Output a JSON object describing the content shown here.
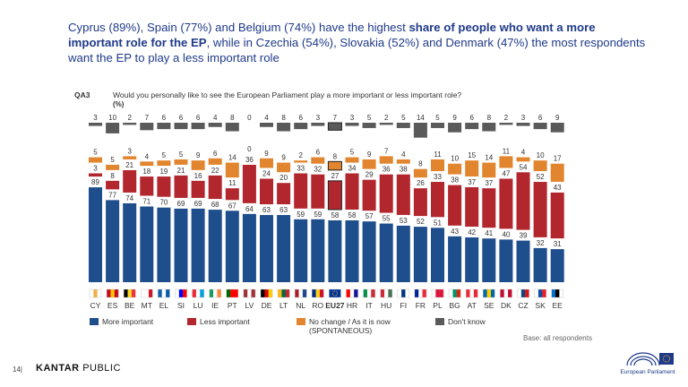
{
  "headline": {
    "part1": "Cyprus (89%), Spain (77%) and Belgium (74%) have the highest ",
    "bold": "share of people who want a more important role for the EP",
    "part2": ", while in Czechia (54%), Slovakia (52%) and Denmark (47%) the most respondents want the EP to play a less important role"
  },
  "question": {
    "code": "QA3",
    "text": "Would you personally like to see the European Parliament play a more important or less important role?",
    "unit": "(%)"
  },
  "legend": {
    "more": "More important",
    "less": "Less important",
    "nochange": "No change / As it is now",
    "nochange_sub": "(SPONTANEOUS)",
    "dk": "Don't know"
  },
  "base_note": "Base: all respondents",
  "page_number": "14",
  "brand": {
    "bold": "KANTAR",
    "light": "PUBLIC"
  },
  "ep_label": "European Parliament",
  "colors": {
    "more": "#1f4e8c",
    "less": "#b2262d",
    "nochange": "#e2852f",
    "dk": "#5a5a5a",
    "headline": "#1f3a8a"
  },
  "chart_data": {
    "type": "bar",
    "stacked": true,
    "highlighted_category": "EU27",
    "categories": [
      "CY",
      "ES",
      "BE",
      "MT",
      "EL",
      "SI",
      "LU",
      "IE",
      "PT",
      "LV",
      "DE",
      "LT",
      "NL",
      "RO",
      "EU27",
      "HR",
      "IT",
      "HU",
      "FI",
      "FR",
      "PL",
      "BG",
      "AT",
      "SE",
      "DK",
      "CZ",
      "SK",
      "EE"
    ],
    "series": [
      {
        "name": "More important",
        "values": [
          89,
          77,
          74,
          71,
          70,
          69,
          69,
          68,
          67,
          64,
          63,
          63,
          59,
          59,
          58,
          58,
          57,
          55,
          53,
          52,
          51,
          43,
          42,
          41,
          40,
          39,
          32,
          31
        ]
      },
      {
        "name": "Less important",
        "values": [
          3,
          8,
          21,
          18,
          19,
          21,
          16,
          22,
          11,
          36,
          24,
          20,
          33,
          32,
          27,
          34,
          29,
          36,
          38,
          26,
          33,
          38,
          37,
          37,
          47,
          54,
          52,
          43
        ]
      },
      {
        "name": "No change / As it is now (SPONTANEOUS)",
        "values": [
          5,
          5,
          3,
          4,
          5,
          5,
          9,
          6,
          14,
          0,
          9,
          9,
          2,
          6,
          8,
          5,
          9,
          7,
          4,
          8,
          11,
          10,
          15,
          14,
          11,
          4,
          10,
          17
        ]
      },
      {
        "name": "Don't know",
        "values": [
          3,
          10,
          2,
          7,
          6,
          6,
          6,
          4,
          8,
          0,
          4,
          8,
          6,
          3,
          7,
          3,
          5,
          2,
          5,
          14,
          5,
          9,
          6,
          8,
          2,
          3,
          6,
          9
        ]
      }
    ],
    "flag_colors": [
      [
        "#ffffff",
        "#f0b04a",
        "#ffffff"
      ],
      [
        "#c60b1e",
        "#ffc400",
        "#c60b1e"
      ],
      [
        "#000000",
        "#fdda24",
        "#ef3340"
      ],
      [
        "#ffffff",
        "#ffffff",
        "#cf142b"
      ],
      [
        "#0d5eaf",
        "#ffffff",
        "#0d5eaf"
      ],
      [
        "#ffffff",
        "#0000ff",
        "#ff0000"
      ],
      [
        "#ed2939",
        "#ffffff",
        "#00a1de"
      ],
      [
        "#169b62",
        "#ffffff",
        "#ff883e"
      ],
      [
        "#006600",
        "#ff0000",
        "#ff0000"
      ],
      [
        "#9e3039",
        "#ffffff",
        "#9e3039"
      ],
      [
        "#000000",
        "#dd0000",
        "#ffce00"
      ],
      [
        "#fdb913",
        "#006a44",
        "#c1272d"
      ],
      [
        "#ae1c28",
        "#ffffff",
        "#21468b"
      ],
      [
        "#002b7f",
        "#fcd116",
        "#ce1126"
      ],
      [
        "#003399",
        "#003399",
        "#003399"
      ],
      [
        "#ff0000",
        "#ffffff",
        "#171796"
      ],
      [
        "#009246",
        "#ffffff",
        "#ce2b37"
      ],
      [
        "#ce2939",
        "#ffffff",
        "#477050"
      ],
      [
        "#ffffff",
        "#003580",
        "#ffffff"
      ],
      [
        "#002395",
        "#ffffff",
        "#ed2939"
      ],
      [
        "#ffffff",
        "#dc143c",
        "#dc143c"
      ],
      [
        "#ffffff",
        "#00966e",
        "#d62612"
      ],
      [
        "#ed2939",
        "#ffffff",
        "#ed2939"
      ],
      [
        "#006aa7",
        "#fecc00",
        "#006aa7"
      ],
      [
        "#c60c30",
        "#ffffff",
        "#c60c30"
      ],
      [
        "#ffffff",
        "#11457e",
        "#d7141a"
      ],
      [
        "#ffffff",
        "#0b4ea2",
        "#ee1c25"
      ],
      [
        "#0072ce",
        "#000000",
        "#ffffff"
      ]
    ]
  }
}
